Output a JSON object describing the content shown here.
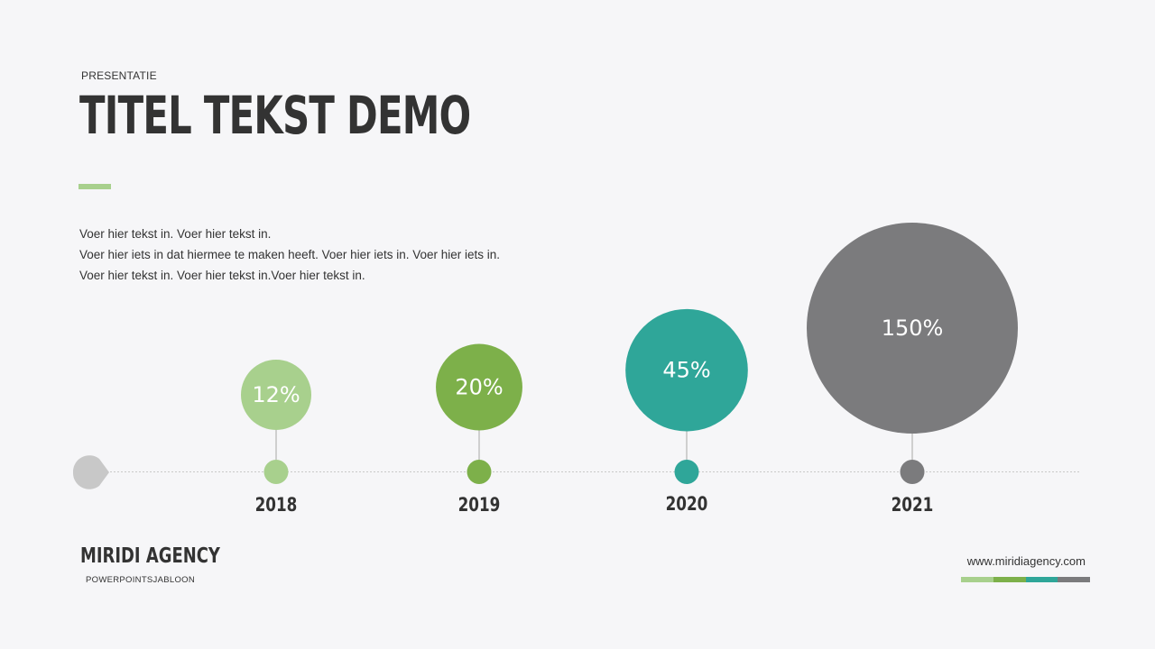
{
  "header": {
    "eyebrow": "PRESENTATIE",
    "title": "TITEL TEKST DEMO"
  },
  "body": {
    "lines": [
      "Voer hier tekst in. Voer hier tekst in.",
      "Voer hier iets in dat hiermee te maken heeft. Voer hier iets in. Voer hier iets in.",
      "Voer hier tekst in. Voer hier tekst in.Voer hier tekst in."
    ]
  },
  "colors": {
    "accent_light_green": "#a8d08d",
    "green": "#7db04a",
    "teal": "#2fa699",
    "gray": "#7b7b7d",
    "timeline_start": "#c8c8c8",
    "text": "#333333"
  },
  "chart_data": {
    "type": "scatter",
    "categories": [
      "2018",
      "2019",
      "2020",
      "2021"
    ],
    "values": [
      12,
      20,
      45,
      150
    ],
    "labels": [
      "12%",
      "20%",
      "45%",
      "150%"
    ],
    "unit": "%"
  },
  "footer": {
    "brand": "MIRIDI AGENCY",
    "sub": "POWERPOINTSJABLOON",
    "url": "www.miridiagency.com"
  }
}
